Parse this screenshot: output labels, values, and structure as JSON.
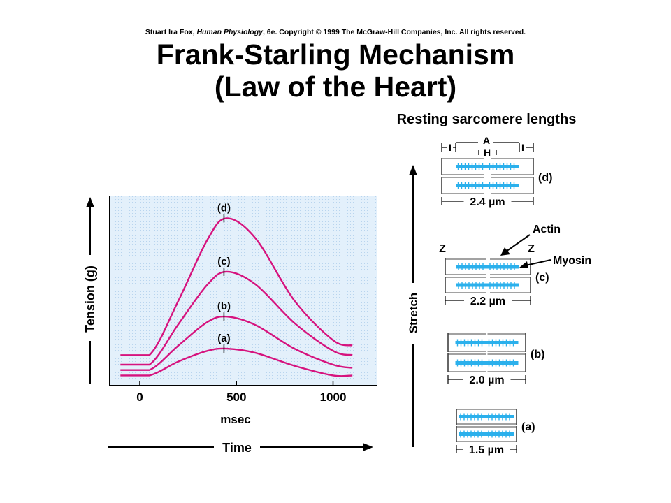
{
  "header": {
    "copyright_author": "Stuart Ira Fox, ",
    "copyright_book": "Human Physiology",
    "copyright_rest": ", 6e. Copyright © 1999 The McGraw-Hill Companies, Inc.  All rights reserved.",
    "title_line1": "Frank-Starling Mechanism",
    "title_line2": "(Law of the Heart)"
  },
  "graph": {
    "y_axis_label": "Tension (g)",
    "x_unit_label": "msec",
    "x_axis_label": "Time",
    "x_ticks": [
      "0",
      "500",
      "1000"
    ],
    "curve_color": "#d6137e",
    "plot_bg": "#e3f0fb",
    "curve_labels": [
      "(a)",
      "(b)",
      "(c)",
      "(d)"
    ]
  },
  "chart_data": {
    "type": "line",
    "xlabel": "msec",
    "ylabel": "Tension (g)",
    "x_ticks": [
      0,
      500,
      1000
    ],
    "xlim": [
      -100,
      1100
    ],
    "series": [
      {
        "name": "(a)",
        "x": [
          -100,
          50,
          200,
          350,
          450,
          600,
          800,
          1000,
          1100
        ],
        "y": [
          0.5,
          0.5,
          1.8,
          2.8,
          3.0,
          2.6,
          1.4,
          0.5,
          0.5
        ]
      },
      {
        "name": "(b)",
        "x": [
          -100,
          50,
          200,
          350,
          450,
          600,
          800,
          1000,
          1100
        ],
        "y": [
          1.0,
          1.0,
          3.3,
          5.5,
          6.0,
          5.2,
          3.0,
          1.5,
          1.2
        ]
      },
      {
        "name": "(c)",
        "x": [
          -100,
          50,
          200,
          350,
          450,
          600,
          800,
          1000,
          1100
        ],
        "y": [
          1.5,
          1.5,
          5.3,
          9.0,
          10.2,
          9.0,
          5.4,
          2.8,
          2.4
        ]
      },
      {
        "name": "(d)",
        "x": [
          -100,
          50,
          200,
          350,
          450,
          600,
          800,
          1000,
          1100
        ],
        "y": [
          2.4,
          2.4,
          7.5,
          13.2,
          15.2,
          13.3,
          7.5,
          3.8,
          3.3
        ]
      }
    ]
  },
  "sarcomeres": {
    "heading": "Resting sarcomere lengths",
    "stretch_label": "Stretch",
    "band_I": "I",
    "band_A": "A",
    "band_H": "H",
    "label_Z": "Z",
    "label_actin": "Actin",
    "label_myosin": "Myosin",
    "actin_color": "#2bb0ec",
    "items": [
      {
        "id": "(d)",
        "length": "2.4 µm"
      },
      {
        "id": "(c)",
        "length": "2.2 µm"
      },
      {
        "id": "(b)",
        "length": "2.0 µm"
      },
      {
        "id": "(a)",
        "length": "1.5 µm"
      }
    ]
  }
}
